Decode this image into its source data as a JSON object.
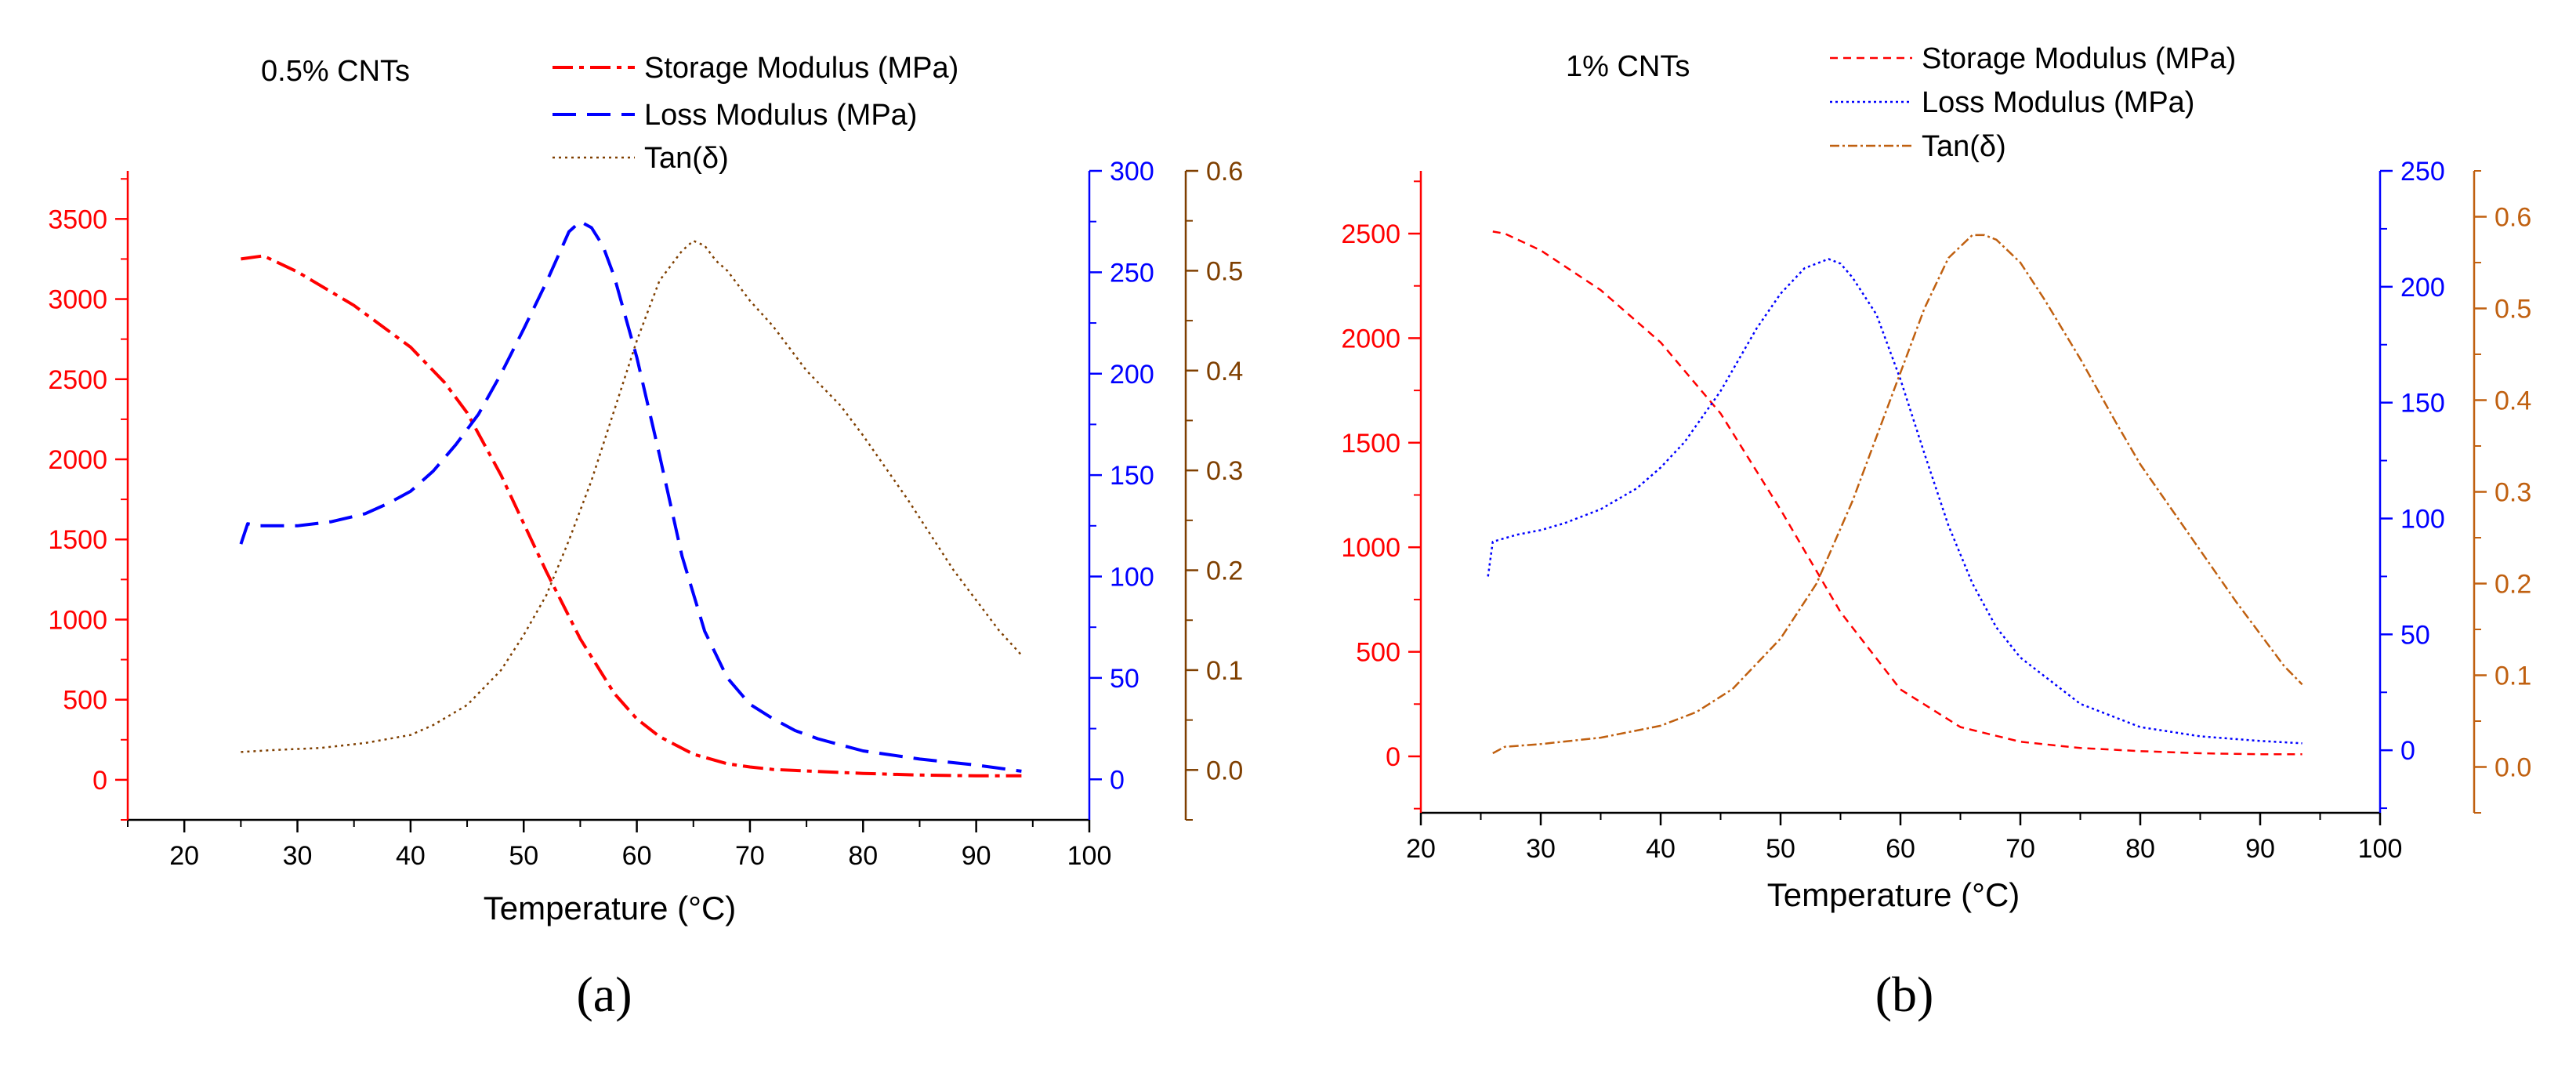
{
  "chart_data": [
    {
      "type": "line",
      "panel": "a",
      "title": "0.5% CNTs",
      "caption": "(a)",
      "xlabel": "Temperature (°C)",
      "xlim": [
        15,
        100
      ],
      "xticks": [
        20,
        30,
        40,
        50,
        60,
        70,
        80,
        90,
        100
      ],
      "axes": {
        "left": {
          "ylim": [
            -250,
            3800
          ],
          "ticks": [
            0,
            500,
            1000,
            1500,
            2000,
            2500,
            3000,
            3500
          ],
          "labels": [
            "0",
            "500",
            "1000",
            "1500",
            "2000",
            "2500",
            "3000",
            "3500"
          ],
          "color": "#ff0000"
        },
        "right1": {
          "ylim": [
            -20,
            300
          ],
          "ticks": [
            0,
            50,
            100,
            150,
            200,
            250,
            300
          ],
          "labels": [
            "0",
            "50",
            "100",
            "150",
            "200",
            "250",
            "300"
          ],
          "color": "#0000ff"
        },
        "right2": {
          "ylim": [
            -0.05,
            0.6
          ],
          "ticks": [
            0.0,
            0.1,
            0.2,
            0.3,
            0.4,
            0.5,
            0.6
          ],
          "labels": [
            "0.0",
            "0.1",
            "0.2",
            "0.3",
            "0.4",
            "0.5",
            "0.6"
          ],
          "color": "#7f3f00"
        }
      },
      "series": [
        {
          "name": "Storage Modulus (MPa)",
          "axis": "left",
          "color": "#ff0000",
          "dash": "26,8,6,8",
          "x": [
            25,
            27,
            30,
            35,
            40,
            43,
            45,
            48,
            50,
            52,
            55,
            58,
            60,
            62,
            65,
            68,
            70,
            72,
            75,
            80,
            85,
            90,
            94
          ],
          "y": [
            3250,
            3270,
            3170,
            2960,
            2700,
            2480,
            2290,
            1900,
            1600,
            1300,
            880,
            540,
            380,
            270,
            160,
            100,
            80,
            65,
            55,
            40,
            30,
            25,
            25
          ]
        },
        {
          "name": "Loss Modulus (MPa)",
          "axis": "right1",
          "color": "#0000ff",
          "dash": "30,14",
          "x": [
            25,
            25.6,
            26.5,
            28,
            30,
            33,
            36,
            38,
            40,
            42,
            44,
            46,
            48,
            50,
            52,
            54,
            55,
            56,
            57,
            58,
            60,
            62,
            64,
            66,
            68,
            70,
            72,
            74,
            76,
            78,
            80,
            85,
            90,
            94
          ],
          "y": [
            116,
            126,
            125,
            125,
            125,
            127,
            131,
            136,
            142,
            152,
            165,
            180,
            200,
            222,
            245,
            270,
            275,
            272,
            263,
            248,
            208,
            160,
            110,
            73,
            50,
            37,
            30,
            24,
            20,
            17,
            14,
            10,
            7,
            4
          ]
        },
        {
          "name": "Tan(δ)",
          "axis": "right2",
          "color": "#7f3f00",
          "dash": "3,5",
          "x": [
            25,
            28,
            32,
            36,
            40,
            42,
            45,
            48,
            50,
            52,
            54,
            56,
            58,
            60,
            62,
            64,
            65,
            66,
            67,
            68,
            70,
            72,
            75,
            78,
            80,
            84,
            88,
            92,
            94
          ],
          "y": [
            0.018,
            0.02,
            0.022,
            0.027,
            0.035,
            0.045,
            0.065,
            0.1,
            0.135,
            0.175,
            0.23,
            0.29,
            0.36,
            0.43,
            0.49,
            0.52,
            0.53,
            0.525,
            0.51,
            0.5,
            0.47,
            0.445,
            0.4,
            0.365,
            0.335,
            0.27,
            0.2,
            0.14,
            0.115
          ]
        }
      ]
    },
    {
      "type": "line",
      "panel": "b",
      "title": "1% CNTs",
      "caption": "(b)",
      "xlabel": "Temperature (°C)",
      "xlim": [
        20,
        100
      ],
      "xticks": [
        20,
        30,
        40,
        50,
        60,
        70,
        80,
        90,
        100
      ],
      "axes": {
        "left": {
          "ylim": [
            -270,
            2800
          ],
          "ticks": [
            0,
            500,
            1000,
            1500,
            2000,
            2500
          ],
          "labels": [
            "0",
            "500",
            "1000",
            "1500",
            "2000",
            "2500"
          ],
          "color": "#ff0000"
        },
        "right1": {
          "ylim": [
            -27,
            250
          ],
          "ticks": [
            0,
            50,
            100,
            150,
            200,
            250
          ],
          "labels": [
            "0",
            "50",
            "100",
            "150",
            "200",
            "250"
          ],
          "color": "#0000ff"
        },
        "right2": {
          "ylim": [
            -0.05,
            0.65
          ],
          "ticks": [
            0.0,
            0.1,
            0.2,
            0.3,
            0.4,
            0.5,
            0.6
          ],
          "labels": [
            "0.0",
            "0.1",
            "0.2",
            "0.3",
            "0.4",
            "0.5",
            "0.6"
          ],
          "color": "#c06010"
        }
      },
      "series": [
        {
          "name": "Storage Modulus (MPa)",
          "axis": "left",
          "color": "#ff0000",
          "dash": "10,7",
          "x": [
            26,
            27,
            30,
            35,
            40,
            45,
            50,
            55,
            60,
            65,
            70,
            75,
            80,
            85,
            90,
            93.5
          ],
          "y": [
            2510,
            2500,
            2420,
            2230,
            1980,
            1640,
            1180,
            690,
            320,
            140,
            70,
            40,
            25,
            15,
            10,
            10
          ]
        },
        {
          "name": "Loss Modulus (MPa)",
          "axis": "right1",
          "color": "#0000ff",
          "dash": "3,4",
          "x": [
            25.6,
            26,
            28,
            30,
            32,
            35,
            38,
            40,
            42,
            45,
            48,
            50,
            52,
            54,
            55,
            56,
            58,
            60,
            62,
            64,
            66,
            68,
            70,
            75,
            80,
            85,
            90,
            93.5
          ],
          "y": [
            75,
            90,
            93,
            95,
            98,
            104,
            113,
            122,
            133,
            155,
            182,
            197,
            208,
            212,
            210,
            204,
            188,
            160,
            128,
            97,
            72,
            53,
            40,
            20,
            10,
            6,
            4,
            3
          ]
        },
        {
          "name": "Tan(δ)",
          "axis": "right2",
          "color": "#c06010",
          "dash": "12,4,3,4",
          "x": [
            26,
            27,
            30,
            35,
            40,
            43,
            46,
            50,
            53,
            56,
            58,
            60,
            62,
            64,
            66,
            67,
            68,
            70,
            72,
            75,
            78,
            80,
            84,
            88,
            92,
            93.5
          ],
          "y": [
            0.015,
            0.022,
            0.025,
            0.032,
            0.045,
            0.06,
            0.085,
            0.14,
            0.2,
            0.29,
            0.36,
            0.43,
            0.5,
            0.555,
            0.58,
            0.58,
            0.575,
            0.55,
            0.51,
            0.445,
            0.375,
            0.33,
            0.255,
            0.18,
            0.11,
            0.09
          ]
        }
      ]
    }
  ]
}
